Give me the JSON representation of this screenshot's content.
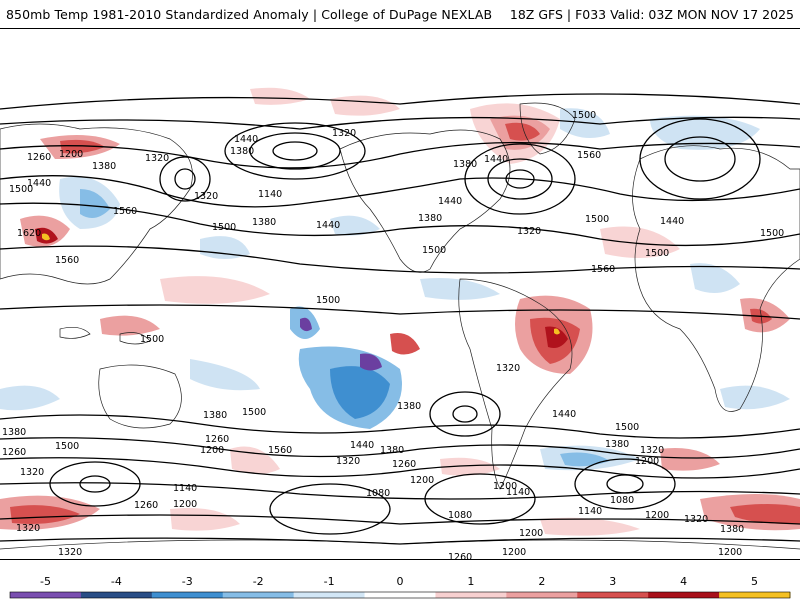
{
  "header": {
    "title": "850mb Temp 1981-2010 Standardized Anomaly | College of DuPage NEXLAB",
    "run_info": "18Z GFS | F033 Valid: 03Z MON NOV 17 2025"
  },
  "map": {
    "contour_labels": [
      "1440",
      "1320",
      "1380",
      "1260",
      "1200",
      "1380",
      "1320",
      "1440",
      "1560",
      "1500",
      "1620",
      "1560",
      "1320",
      "1140",
      "1500",
      "1380",
      "1440",
      "1380",
      "1500",
      "1440",
      "1320",
      "1500",
      "1560",
      "1500",
      "1380",
      "1440",
      "1560",
      "1500",
      "1440",
      "1500",
      "1500",
      "1500",
      "1500",
      "1380",
      "1260",
      "1200",
      "1380",
      "1320",
      "1260",
      "1500",
      "1560",
      "1440",
      "1380",
      "1320",
      "1260",
      "1200",
      "1140",
      "1080",
      "1080",
      "1140",
      "1200",
      "1380",
      "1320",
      "1200",
      "1500",
      "1440",
      "1380",
      "1320",
      "1200",
      "1140",
      "1080",
      "1200",
      "1260",
      "1200",
      "1320",
      "1320",
      "1260",
      "1200",
      "1320",
      "1380",
      "1200"
    ],
    "colors": {
      "neg5": "#6b3fa0",
      "neg4": "#25477a",
      "neg3": "#3f8fd0",
      "neg2": "#86bde6",
      "neg1": "#cfe3f3",
      "pos1": "#f8d4d4",
      "pos2": "#eba0a0",
      "pos3": "#d6504f",
      "pos4": "#b0121c",
      "pos5": "#7a0b12",
      "pos6": "#f4c023"
    }
  },
  "legend": {
    "ticks": [
      "-5",
      "-4",
      "-3",
      "-2",
      "-1",
      "0",
      "1",
      "2",
      "3",
      "4",
      "5"
    ],
    "colors": [
      "#7a4fb0",
      "#2a4e86",
      "#3f8fd0",
      "#86bde6",
      "#d2e6f5",
      "#ffffff",
      "#f7d0d0",
      "#eba0a0",
      "#d6504f",
      "#a8101a",
      "#f4c023"
    ]
  }
}
